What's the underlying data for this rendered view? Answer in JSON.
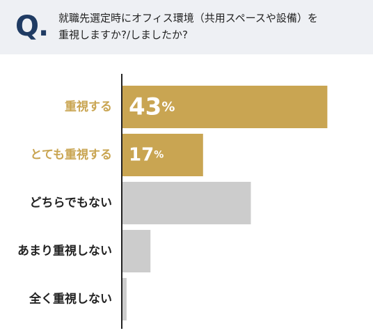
{
  "question": {
    "mark": "Q.",
    "line1": "就職先選定時にオフィス環境（共用スペースや設備）を",
    "line2": "重視しますか?/しましたか?"
  },
  "colors": {
    "highlight": "#c9a552",
    "muted": "#cccccc",
    "axis": "#222222",
    "question_mark": "#1f3b63",
    "question_bg": "#eef0f4"
  },
  "chart_data": {
    "type": "bar",
    "orientation": "horizontal",
    "categories": [
      "重視する",
      "とても重視する",
      "どちらでもない",
      "あまり重視しない",
      "全く重視しない"
    ],
    "values": [
      43,
      17,
      27,
      6,
      1
    ],
    "value_labels": [
      "43%",
      "17%",
      "",
      "",
      ""
    ],
    "highlighted": [
      true,
      true,
      false,
      false,
      false
    ],
    "xlim": [
      0,
      46
    ],
    "unit": "%"
  }
}
